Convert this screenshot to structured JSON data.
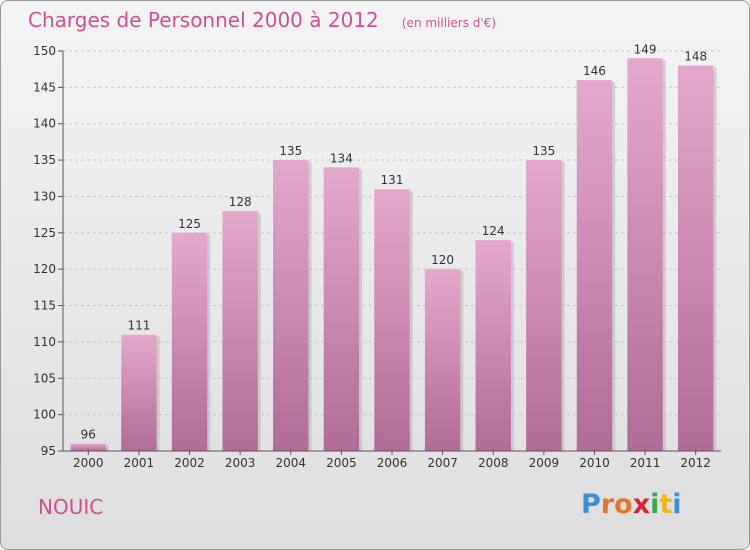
{
  "header": {
    "title": "Charges de Personnel 2000 à 2012",
    "subtitle": "(en milliers d'€)"
  },
  "footer": {
    "commune": "NOUIC",
    "logo": [
      "P",
      "r",
      "o",
      "x",
      "i",
      "t",
      "i"
    ]
  },
  "colors": {
    "accent": "#d0508f",
    "bar_top": "#e5a8cd",
    "bar_bottom": "#b06c96",
    "logo": [
      "#3a8fd6",
      "#e5762e",
      "#e5762e",
      "#d6253b",
      "#3aa84d",
      "#f0b520",
      "#3a8fd6"
    ]
  },
  "chart_data": {
    "type": "bar",
    "categories": [
      "2000",
      "2001",
      "2002",
      "2003",
      "2004",
      "2005",
      "2006",
      "2007",
      "2008",
      "2009",
      "2010",
      "2011",
      "2012"
    ],
    "values": [
      96,
      111,
      125,
      128,
      135,
      134,
      131,
      120,
      124,
      135,
      146,
      149,
      148
    ],
    "title": "Charges de Personnel 2000 à 2012",
    "ylim": [
      95,
      150
    ],
    "yticks": [
      95,
      100,
      105,
      110,
      115,
      120,
      125,
      130,
      135,
      140,
      145,
      150
    ],
    "grid": true,
    "data_labels": true
  }
}
